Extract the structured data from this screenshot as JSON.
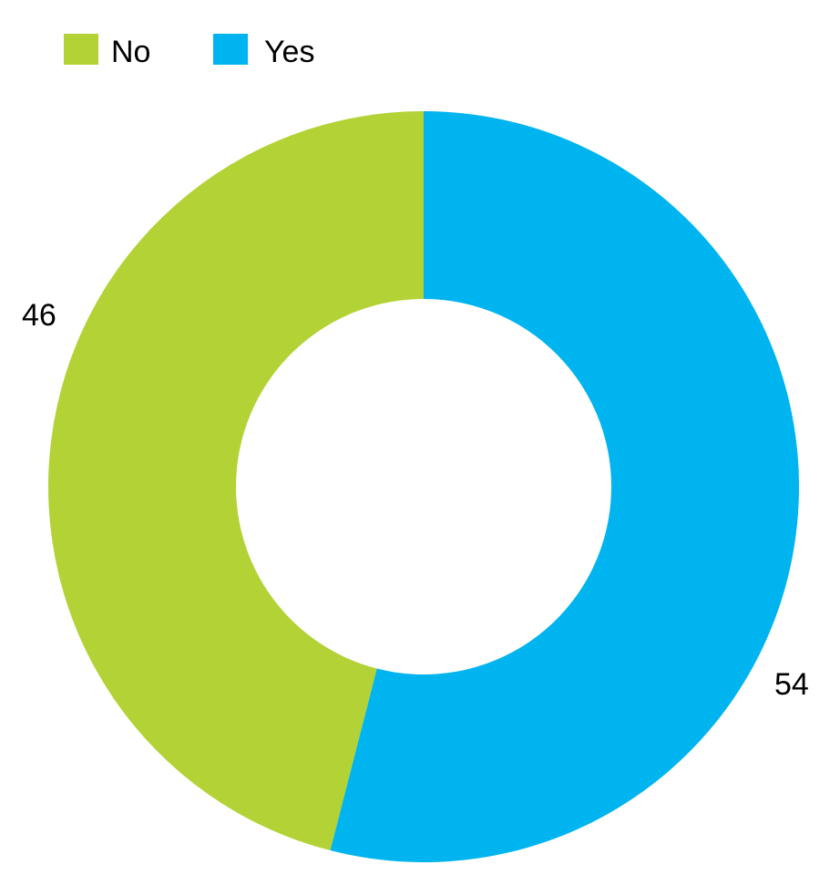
{
  "chart_data": {
    "type": "pie",
    "variant": "donut",
    "categories": [
      "No",
      "Yes"
    ],
    "values": [
      46,
      54
    ],
    "colors": [
      "#b2d235",
      "#00b4ef"
    ],
    "legend": {
      "placement": "top-left",
      "entries": [
        "No",
        "Yes"
      ]
    },
    "data_labels": [
      "46",
      "54"
    ],
    "start_angle_deg": 0,
    "direction": "counterclockwise-from-top-for-first-slice"
  }
}
